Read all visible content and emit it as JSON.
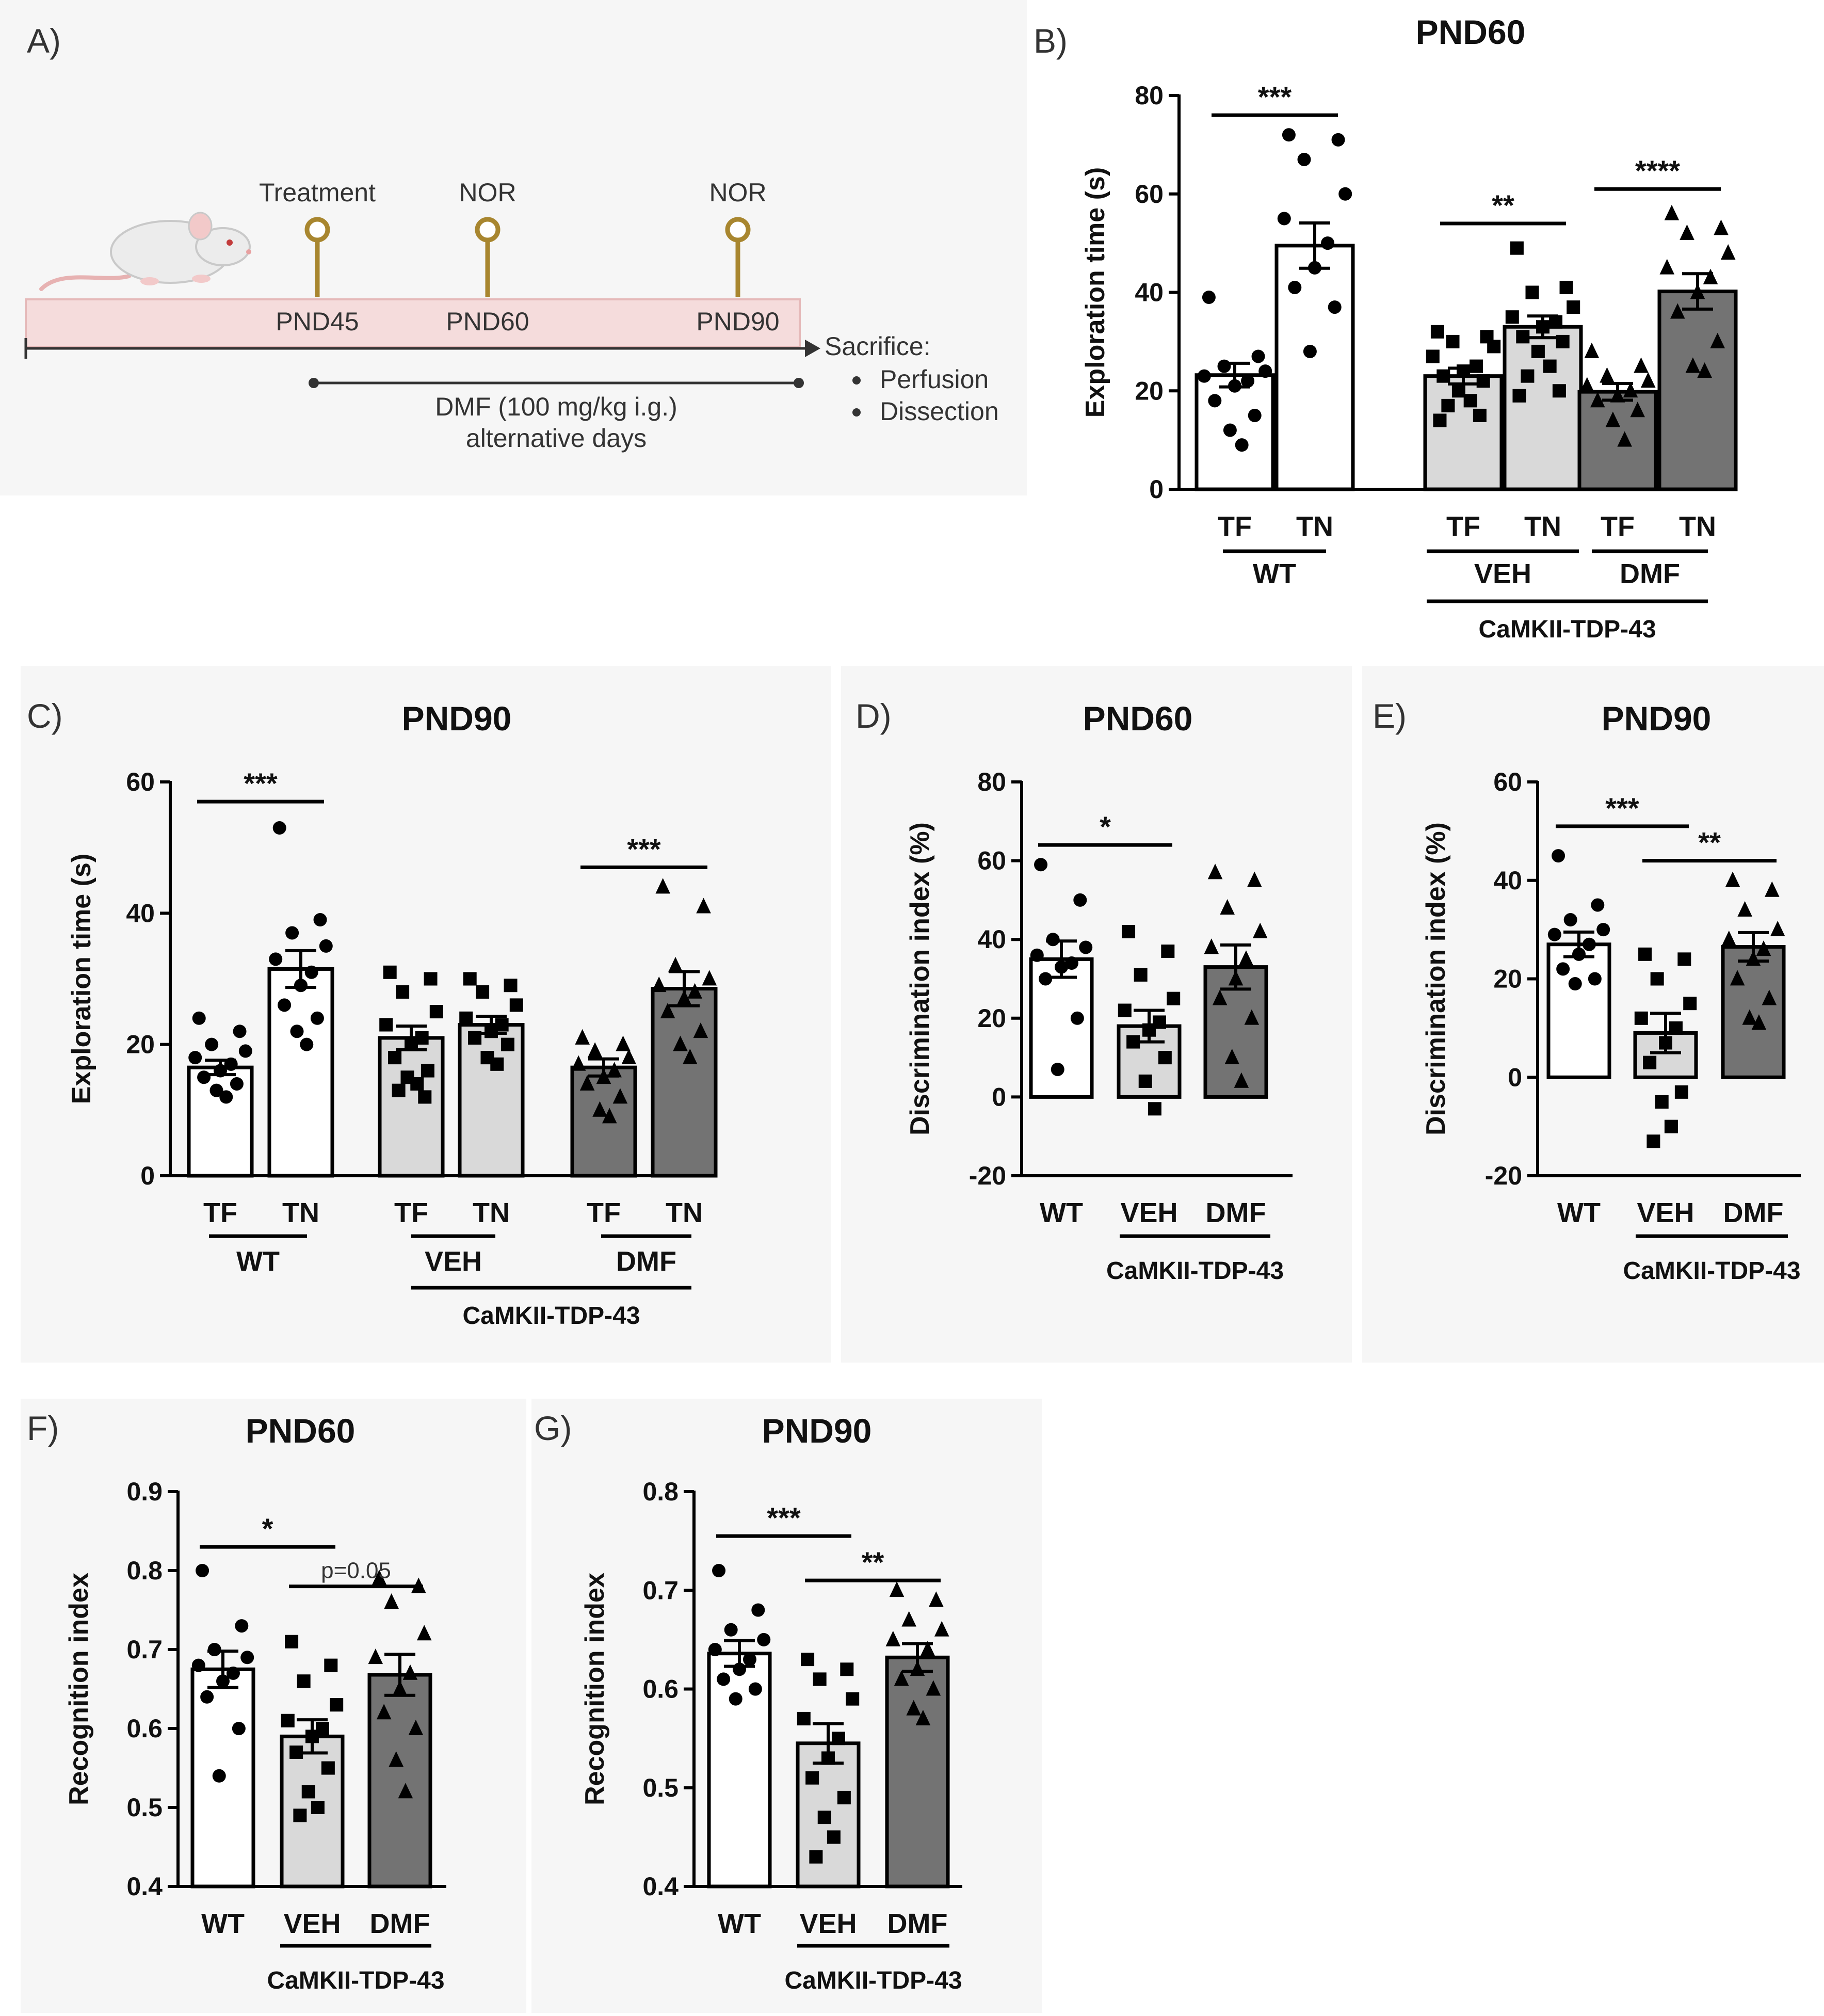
{
  "colors": {
    "wt_fill": "#ffffff",
    "veh_fill": "#d9d9d9",
    "dmf_fill": "#737373",
    "bar_stroke": "#000000",
    "timeline_band": "#f5dcdc",
    "timeline_band_stroke": "#e5b9b9",
    "pin": "#a8862f",
    "panel_bg": "#f6f6f6"
  },
  "panel_A": {
    "label": "A)",
    "milestones": [
      {
        "top": "Treatment",
        "bottom": "PND45"
      },
      {
        "top": "NOR",
        "bottom": "PND60"
      },
      {
        "top": "NOR",
        "bottom": "PND90"
      }
    ],
    "endpoint_title": "Sacrifice:",
    "endpoint_items": [
      "Perfusion",
      "Dissection"
    ],
    "treatment_line1": "DMF (100 mg/kg i.g.)",
    "treatment_line2": "alternative days",
    "icons": [
      "mouse-icon",
      "timeline-pin-icon",
      "arrow-right-icon"
    ]
  },
  "chart_data": [
    {
      "id": "B",
      "label": "B)",
      "type": "bar",
      "title": "PND60",
      "ylabel": "Exploration time (s)",
      "ylim": [
        0,
        80
      ],
      "yticks": [
        "0",
        "20",
        "40",
        "60",
        "80"
      ],
      "bars": [
        {
          "group": "WT",
          "cat": "TF",
          "mean": 23.2,
          "sem": 2.4,
          "fill": "wt",
          "marker": "circle",
          "points": [
            39.0,
            27.0,
            25.0,
            24.0,
            23.0,
            22.0,
            21.0,
            18.0,
            15.0,
            12.0,
            9.0
          ]
        },
        {
          "group": "WT",
          "cat": "TN",
          "mean": 49.5,
          "sem": 4.6,
          "fill": "wt",
          "marker": "circle",
          "points": [
            72.0,
            71.0,
            67.0,
            60.0,
            55.0,
            50.0,
            45.0,
            41.0,
            37.0,
            28.0
          ]
        },
        {
          "group": "VEH",
          "cat": "TF",
          "mean": 23.0,
          "sem": 1.6,
          "fill": "veh",
          "marker": "square",
          "points": [
            32.0,
            31.0,
            30.0,
            29.0,
            27.0,
            25.0,
            24.0,
            23.0,
            22.0,
            20.0,
            18.0,
            17.0,
            15.0,
            14.0
          ]
        },
        {
          "group": "VEH",
          "cat": "TN",
          "mean": 33.0,
          "sem": 2.2,
          "fill": "veh",
          "marker": "square",
          "points": [
            49.0,
            41.0,
            40.0,
            37.0,
            35.0,
            34.0,
            33.0,
            31.0,
            30.0,
            28.0,
            25.0,
            23.0,
            20.0,
            19.0
          ]
        },
        {
          "group": "DMF",
          "cat": "TF",
          "mean": 19.8,
          "sem": 1.7,
          "fill": "dmf",
          "marker": "triangle",
          "points": [
            28.0,
            25.0,
            23.0,
            22.0,
            21.0,
            20.0,
            19.0,
            18.0,
            16.0,
            14.0,
            10.0
          ]
        },
        {
          "group": "DMF",
          "cat": "TN",
          "mean": 40.2,
          "sem": 3.6,
          "fill": "dmf",
          "marker": "triangle",
          "points": [
            56.0,
            53.0,
            52.0,
            48.0,
            45.0,
            43.0,
            40.0,
            36.0,
            30.0,
            25.0,
            24.0
          ]
        }
      ],
      "groups": [
        "WT",
        "VEH",
        "DMF"
      ],
      "super_label": "CaMKII-TDP-43",
      "sig": [
        {
          "from": 0,
          "to": 1,
          "y": 76,
          "text": "***"
        },
        {
          "from": 2,
          "to": 3,
          "y": 54,
          "text": "**"
        },
        {
          "from": 4,
          "to": 5,
          "y": 61,
          "text": "****"
        }
      ]
    },
    {
      "id": "C",
      "label": "C)",
      "type": "bar",
      "title": "PND90",
      "ylabel": "Exploration time (s)",
      "ylim": [
        0,
        60
      ],
      "yticks": [
        "0",
        "20",
        "40",
        "60"
      ],
      "bars": [
        {
          "group": "WT",
          "cat": "TF",
          "mean": 16.5,
          "sem": 1.1,
          "fill": "wt",
          "marker": "circle",
          "points": [
            24.0,
            22.0,
            20.0,
            19.0,
            18.0,
            17.0,
            16.0,
            15.0,
            14.0,
            13.0,
            12.0
          ]
        },
        {
          "group": "WT",
          "cat": "TN",
          "mean": 31.5,
          "sem": 2.8,
          "fill": "wt",
          "marker": "circle",
          "points": [
            53.0,
            39.0,
            37.0,
            35.0,
            33.0,
            31.0,
            29.0,
            26.0,
            24.0,
            22.0,
            20.0
          ]
        },
        {
          "group": "VEH",
          "cat": "TF",
          "mean": 21.0,
          "sem": 1.8,
          "fill": "veh",
          "marker": "square",
          "points": [
            31.0,
            30.0,
            28.0,
            25.0,
            23.0,
            21.0,
            20.0,
            18.0,
            16.0,
            15.0,
            14.0,
            13.0,
            12.0
          ]
        },
        {
          "group": "VEH",
          "cat": "TN",
          "mean": 23.0,
          "sem": 1.3,
          "fill": "veh",
          "marker": "square",
          "points": [
            30.0,
            29.0,
            28.0,
            26.0,
            24.0,
            23.0,
            22.0,
            21.0,
            20.0,
            18.0,
            17.0
          ]
        },
        {
          "group": "DMF",
          "cat": "TF",
          "mean": 16.5,
          "sem": 1.3,
          "fill": "dmf",
          "marker": "triangle",
          "points": [
            21.0,
            20.0,
            19.0,
            18.0,
            17.0,
            16.0,
            15.0,
            14.0,
            12.0,
            10.0,
            9.0
          ]
        },
        {
          "group": "DMF",
          "cat": "TN",
          "mean": 28.5,
          "sem": 2.6,
          "fill": "dmf",
          "marker": "triangle",
          "points": [
            44.0,
            41.0,
            32.0,
            30.0,
            29.0,
            28.0,
            27.0,
            25.0,
            22.0,
            20.0,
            18.0
          ]
        }
      ],
      "groups": [
        "WT",
        "VEH",
        "DMF"
      ],
      "super_label": "CaMKII-TDP-43",
      "sig": [
        {
          "from": 0,
          "to": 1,
          "y": 57,
          "text": "***"
        },
        {
          "from": 4,
          "to": 5,
          "y": 47,
          "text": "***"
        }
      ]
    },
    {
      "id": "D",
      "label": "D)",
      "type": "bar",
      "title": "PND60",
      "ylabel": "Discrimination index (%)",
      "ylim": [
        -20,
        80
      ],
      "yticks": [
        "-20",
        "0",
        "20",
        "40",
        "60",
        "80"
      ],
      "bars": [
        {
          "group": "WT",
          "cat": "WT",
          "mean": 35.0,
          "sem": 4.6,
          "fill": "wt",
          "marker": "circle",
          "points": [
            59.0,
            50.0,
            40.0,
            38.0,
            36.0,
            34.0,
            33.0,
            30.0,
            20.0,
            7.0
          ]
        },
        {
          "group": "VEH",
          "cat": "VEH",
          "mean": 18.0,
          "sem": 4.0,
          "fill": "veh",
          "marker": "square",
          "points": [
            42.0,
            37.0,
            31.0,
            25.0,
            22.0,
            19.0,
            17.0,
            14.0,
            10.0,
            4.0,
            -3.0
          ]
        },
        {
          "group": "DMF",
          "cat": "DMF",
          "mean": 33.0,
          "sem": 5.6,
          "fill": "dmf",
          "marker": "triangle",
          "points": [
            57.0,
            55.0,
            48.0,
            42.0,
            38.0,
            35.0,
            30.0,
            25.0,
            20.0,
            10.0,
            4.0
          ]
        }
      ],
      "super_label": "CaMKII-TDP-43",
      "sig": [
        {
          "from": 0,
          "to": 1,
          "y": 64,
          "text": "*"
        }
      ]
    },
    {
      "id": "E",
      "label": "E)",
      "type": "bar",
      "title": "PND90",
      "ylabel": "Discrimination index (%)",
      "ylim": [
        -20,
        60
      ],
      "yticks": [
        "-20",
        "0",
        "20",
        "40",
        "60"
      ],
      "bars": [
        {
          "group": "WT",
          "cat": "WT",
          "mean": 27.0,
          "sem": 2.5,
          "fill": "wt",
          "marker": "circle",
          "points": [
            45.0,
            35.0,
            32.0,
            30.0,
            29.0,
            27.0,
            25.0,
            22.0,
            20.0,
            19.0
          ]
        },
        {
          "group": "VEH",
          "cat": "VEH",
          "mean": 9.0,
          "sem": 4.0,
          "fill": "veh",
          "marker": "square",
          "points": [
            25.0,
            24.0,
            20.0,
            15.0,
            12.0,
            10.0,
            7.0,
            3.0,
            -3.0,
            -5.0,
            -10.0,
            -13.0
          ]
        },
        {
          "group": "DMF",
          "cat": "DMF",
          "mean": 26.5,
          "sem": 2.9,
          "fill": "dmf",
          "marker": "triangle",
          "points": [
            40.0,
            38.0,
            34.0,
            30.0,
            28.0,
            26.0,
            24.0,
            20.0,
            16.0,
            12.0,
            11.0
          ]
        }
      ],
      "super_label": "CaMKII-TDP-43",
      "sig": [
        {
          "from": 0,
          "to": 1,
          "y": 51,
          "text": "***"
        },
        {
          "from": 1,
          "to": 2,
          "y": 44,
          "text": "**"
        }
      ]
    },
    {
      "id": "F",
      "label": "F)",
      "type": "bar",
      "title": "PND60",
      "ylabel": "Recognition index",
      "ylim": [
        0.4,
        0.9
      ],
      "yticks": [
        "0.4",
        "0.5",
        "0.6",
        "0.7",
        "0.8",
        "0.9"
      ],
      "bars": [
        {
          "group": "WT",
          "cat": "WT",
          "mean": 0.675,
          "sem": 0.023,
          "fill": "wt",
          "marker": "circle",
          "points": [
            0.8,
            0.73,
            0.7,
            0.69,
            0.68,
            0.67,
            0.66,
            0.64,
            0.6,
            0.54
          ]
        },
        {
          "group": "VEH",
          "cat": "VEH",
          "mean": 0.59,
          "sem": 0.021,
          "fill": "veh",
          "marker": "square",
          "points": [
            0.71,
            0.68,
            0.66,
            0.63,
            0.61,
            0.6,
            0.59,
            0.57,
            0.55,
            0.52,
            0.5,
            0.49
          ]
        },
        {
          "group": "DMF",
          "cat": "DMF",
          "mean": 0.668,
          "sem": 0.026,
          "fill": "dmf",
          "marker": "triangle",
          "points": [
            0.79,
            0.78,
            0.76,
            0.72,
            0.69,
            0.67,
            0.65,
            0.62,
            0.6,
            0.56,
            0.52
          ]
        }
      ],
      "super_label": "CaMKII-TDP-43",
      "sig": [
        {
          "from": 0,
          "to": 1,
          "y": 0.83,
          "text": "*"
        },
        {
          "from": 1,
          "to": 2,
          "y": 0.78,
          "text": "p=0.05",
          "small": true
        }
      ]
    },
    {
      "id": "G",
      "label": "G)",
      "type": "bar",
      "title": "PND90",
      "ylabel": "Recognition index",
      "ylim": [
        0.4,
        0.8
      ],
      "yticks": [
        "0.4",
        "0.5",
        "0.6",
        "0.7",
        "0.8"
      ],
      "bars": [
        {
          "group": "WT",
          "cat": "WT",
          "mean": 0.636,
          "sem": 0.013,
          "fill": "wt",
          "marker": "circle",
          "points": [
            0.72,
            0.68,
            0.66,
            0.65,
            0.64,
            0.63,
            0.62,
            0.61,
            0.6,
            0.59
          ]
        },
        {
          "group": "VEH",
          "cat": "VEH",
          "mean": 0.545,
          "sem": 0.02,
          "fill": "veh",
          "marker": "square",
          "points": [
            0.63,
            0.62,
            0.61,
            0.59,
            0.57,
            0.55,
            0.53,
            0.51,
            0.49,
            0.47,
            0.45,
            0.43
          ]
        },
        {
          "group": "DMF",
          "cat": "DMF",
          "mean": 0.632,
          "sem": 0.014,
          "fill": "dmf",
          "marker": "triangle",
          "points": [
            0.7,
            0.69,
            0.67,
            0.66,
            0.65,
            0.64,
            0.62,
            0.61,
            0.6,
            0.58,
            0.57
          ]
        }
      ],
      "super_label": "CaMKII-TDP-43",
      "sig": [
        {
          "from": 0,
          "to": 1,
          "y": 0.755,
          "text": "***"
        },
        {
          "from": 1,
          "to": 2,
          "y": 0.71,
          "text": "**"
        }
      ]
    }
  ]
}
